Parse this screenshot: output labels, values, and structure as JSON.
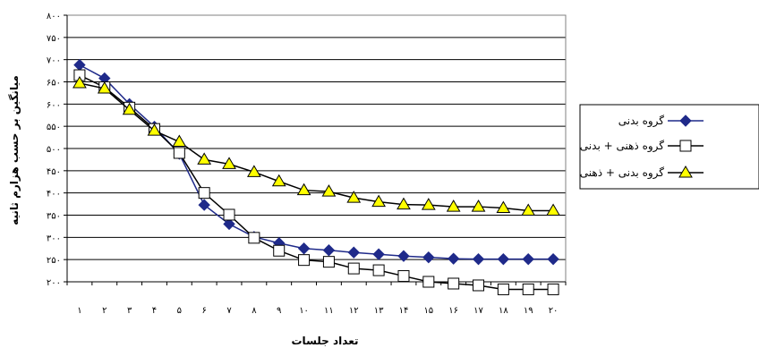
{
  "chart_data": {
    "type": "line",
    "xlabel": "تعداد جلسات",
    "ylabel": "میانگین بر حسب هزارم ثانیه",
    "x": [
      1,
      2,
      3,
      4,
      5,
      6,
      7,
      8,
      9,
      10,
      11,
      12,
      13,
      14,
      15,
      16,
      17,
      18,
      19,
      20
    ],
    "x_tick_labels": [
      "۱",
      "۲",
      "۳",
      "۴",
      "۵",
      "۶",
      "۷",
      "۸",
      "۹",
      "۱۰",
      "۱۱",
      "۱۲",
      "۱۳",
      "۱۴",
      "۱۵",
      "۱۶",
      "۱۷",
      "۱۸",
      "۱۹",
      "۲۰"
    ],
    "ylim": [
      200,
      800
    ],
    "y_ticks": [
      200,
      250,
      300,
      350,
      400,
      450,
      500,
      550,
      600,
      650,
      700,
      750,
      800
    ],
    "y_tick_labels": [
      "۲۰۰",
      "۲۵۰",
      "۳۰۰",
      "۳۵۰",
      "۴۰۰",
      "۴۵۰",
      "۵۰۰",
      "۵۵۰",
      "۶۰۰",
      "۶۵۰",
      "۷۰۰",
      "۷۵۰",
      "۸۰۰"
    ],
    "grid": "horizontal",
    "legend_position": "right",
    "series": [
      {
        "name": "گروه بدنی",
        "marker": "diamond",
        "color": "#1F2A8A",
        "marker_fill": "#1F2A8A",
        "values": [
          688,
          658,
          600,
          549,
          488,
          373,
          330,
          301,
          287,
          275,
          271,
          266,
          262,
          258,
          255,
          252,
          251,
          251,
          251,
          251
        ]
      },
      {
        "name": "گروه ذهنی + بدنی",
        "marker": "square",
        "color": "#000000",
        "marker_fill": "#FFFFFF",
        "values": [
          665,
          638,
          592,
          544,
          490,
          400,
          351,
          299,
          270,
          249,
          245,
          230,
          226,
          213,
          200,
          196,
          192,
          183,
          183,
          183
        ]
      },
      {
        "name": "گروه بدنی + ذهنی",
        "marker": "triangle",
        "color": "#000000",
        "marker_fill": "#FFFF00",
        "values": [
          647,
          635,
          587,
          540,
          515,
          475,
          465,
          447,
          426,
          406,
          403,
          389,
          380,
          374,
          373,
          369,
          369,
          366,
          360,
          360
        ]
      }
    ]
  }
}
